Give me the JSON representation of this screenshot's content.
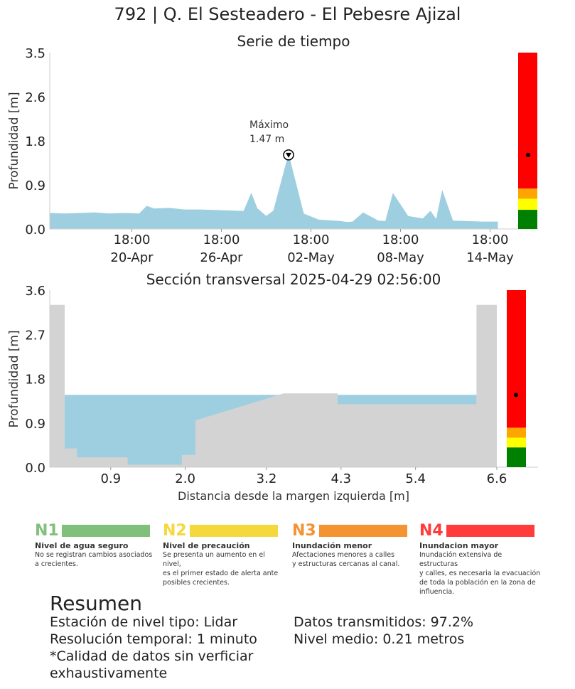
{
  "page": {
    "title": "792 | Q. El Sesteadero - El Pebesre Ajizal"
  },
  "colors": {
    "water": "#9ecfe0",
    "ground": "#d3d3d3",
    "level_green": "#008000",
    "level_yellow": "#ffff00",
    "level_orange": "#ffa500",
    "level_red": "#ff0000"
  },
  "chart_data": [
    {
      "type": "area",
      "title": "Serie de tiempo",
      "xlabel": "",
      "ylabel": "Profundidad [m]",
      "ylim": [
        0,
        3.5
      ],
      "yticks": [
        "0.0",
        "0.9",
        "1.8",
        "2.6",
        "3.5"
      ],
      "xtick_labels": [
        [
          "18:00",
          "20-Apr"
        ],
        [
          "18:00",
          "26-Apr"
        ],
        [
          "18:00",
          "02-May"
        ],
        [
          "18:00",
          "08-May"
        ],
        [
          "18:00",
          "14-May"
        ]
      ],
      "max_annotation": {
        "label": "Máximo",
        "value_text": "1.47 m",
        "value": 1.47
      },
      "series": [
        {
          "x_days": [
            0,
            1,
            2,
            3,
            4,
            5,
            6,
            6.5,
            7,
            8,
            9,
            10,
            11,
            12,
            13,
            13.5,
            13.9,
            14,
            14.5,
            15,
            16,
            17,
            18,
            19,
            19.5,
            19.9,
            20.3,
            21,
            22,
            22.5,
            23,
            24,
            25,
            25.5,
            25.9,
            26.3,
            27,
            28,
            29,
            30
          ],
          "y": [
            0.31,
            0.3,
            0.31,
            0.32,
            0.3,
            0.31,
            0.3,
            0.45,
            0.4,
            0.41,
            0.38,
            0.38,
            0.37,
            0.36,
            0.35,
            0.7,
            0.4,
            0.38,
            0.25,
            0.36,
            1.47,
            0.3,
            0.18,
            0.16,
            0.15,
            0.13,
            0.14,
            0.32,
            0.16,
            0.15,
            0.7,
            0.25,
            0.2,
            0.35,
            0.18,
            0.75,
            0.16,
            0.15,
            0.14,
            0.14
          ]
        }
      ],
      "level_bar": {
        "ylim": [
          0,
          3.5
        ],
        "n1_top": 0.38,
        "n2_top": 0.6,
        "n3_top": 0.8,
        "current": 1.47
      }
    },
    {
      "type": "area",
      "title": "Sección transversal 2025-04-29 02:56:00",
      "xlabel": "Distancia desde la margen izquierda [m]",
      "ylabel": "Profundidad [m]",
      "xlim": [
        0,
        6.6
      ],
      "ylim": [
        0,
        3.6
      ],
      "xticks": [
        "0.9",
        "2.0",
        "3.2",
        "4.3",
        "5.4",
        "6.6"
      ],
      "yticks": [
        "0.0",
        "0.9",
        "1.8",
        "2.7",
        "3.6"
      ],
      "water_level": 1.47,
      "ground_profile": {
        "x": [
          0,
          0,
          0.22,
          0.22,
          0.4,
          0.4,
          1.15,
          1.15,
          1.95,
          1.95,
          2.15,
          2.15,
          3.45,
          4.25,
          4.25,
          6.3,
          6.3,
          6.6,
          6.6
        ],
        "y": [
          0,
          3.3,
          3.3,
          0.38,
          0.38,
          0.2,
          0.2,
          0.05,
          0.05,
          0.25,
          0.25,
          0.95,
          1.5,
          1.5,
          1.28,
          1.28,
          3.3,
          3.3,
          0
        ]
      },
      "level_bar": {
        "ylim": [
          0,
          3.6
        ],
        "n1_top": 0.4,
        "n2_top": 0.6,
        "n3_top": 0.8,
        "current": 1.47
      }
    }
  ],
  "legend": [
    {
      "code": "N1",
      "name": "Nivel de agua seguro",
      "desc": [
        "No se registran cambios asociados",
        "a crecientes."
      ],
      "color": "#80c07a"
    },
    {
      "code": "N2",
      "name": "Nivel de precaución",
      "desc": [
        "Se presenta un aumento en el nivel,",
        "es el primer estado de alerta ante",
        "posibles crecientes."
      ],
      "color": "#f5d83b"
    },
    {
      "code": "N3",
      "name": "Inundación menor",
      "desc": [
        "Afectaciones menores a calles",
        "y estructuras cercanas al canal."
      ],
      "color": "#f39332"
    },
    {
      "code": "N4",
      "name": "Inundacion mayor",
      "desc": [
        "Inundación extensiva de estructuras",
        "y calles, es necesaria la evacuación",
        "de toda la población en la zona de",
        "influencia."
      ],
      "color": "#ff3b3b"
    }
  ],
  "summary": {
    "title": "Resumen",
    "left_lines": [
      "Estación de nivel tipo: Lidar",
      "Resolución temporal: 1 minuto",
      "*Calidad de datos sin verficiar",
      "exhaustivamente"
    ],
    "right_lines": [
      "Datos transmitidos: 97.2%",
      "Nivel medio: 0.21 metros"
    ]
  }
}
